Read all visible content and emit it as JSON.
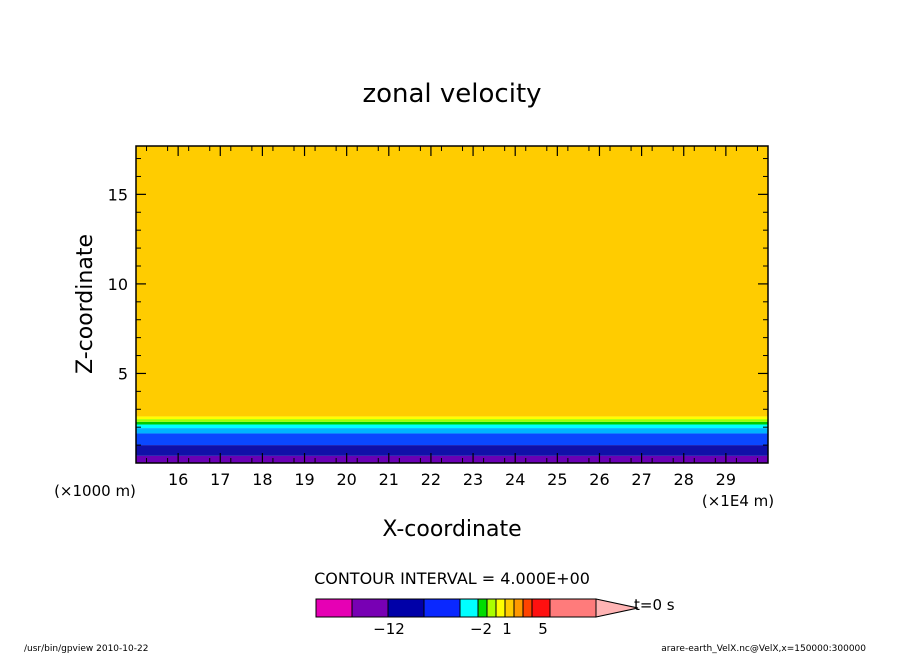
{
  "chart_data": {
    "type": "heatmap",
    "title": "zonal velocity",
    "xlabel": "X-coordinate",
    "ylabel": "Z-coordinate",
    "x_unit_left": "(×1000 m)",
    "x_unit_right": "(×1E4 m)",
    "xlim": [
      15.0,
      30.0
    ],
    "ylim": [
      0.0,
      17.7
    ],
    "x_ticks": [
      16,
      17,
      18,
      19,
      20,
      21,
      22,
      23,
      24,
      25,
      26,
      27,
      28,
      29
    ],
    "y_ticks": [
      5,
      10,
      15
    ],
    "layers": [
      {
        "z0": 0.0,
        "z1": 0.4,
        "color": "#6a00b4"
      },
      {
        "z0": 0.4,
        "z1": 1.0,
        "color": "#1010a8"
      },
      {
        "z0": 1.0,
        "z1": 1.65,
        "color": "#0a48ff"
      },
      {
        "z0": 1.65,
        "z1": 1.95,
        "color": "#00b4ff"
      },
      {
        "z0": 1.95,
        "z1": 2.15,
        "color": "#00ffff"
      },
      {
        "z0": 2.15,
        "z1": 2.3,
        "color": "#00cc00"
      },
      {
        "z0": 2.3,
        "z1": 2.45,
        "color": "#a0ff00"
      },
      {
        "z0": 2.45,
        "z1": 2.6,
        "color": "#ffff00"
      },
      {
        "z0": 2.6,
        "z1": 17.7,
        "color": "#ffcc00"
      }
    ],
    "colorbar": {
      "contour_interval": "CONTOUR INTERVAL = 4.000E+00",
      "tick_labels": [
        "−12",
        "−2",
        "1",
        "5"
      ],
      "tick_positions": [
        -12,
        -2,
        1,
        5
      ],
      "time_label": "t=0 s",
      "segments": [
        {
          "v0": -24,
          "v1": -20,
          "color": "#e600b4"
        },
        {
          "v0": -20,
          "v1": -16,
          "color": "#7800b4"
        },
        {
          "v0": -16,
          "v1": -12,
          "color": "#0000a8"
        },
        {
          "v0": -12,
          "v1": -8,
          "color": "#0a28ff"
        },
        {
          "v0": -8,
          "v1": -4,
          "color": "#0a28ff"
        },
        {
          "v0": -4,
          "v1": -2,
          "color": "#00ffff"
        },
        {
          "v0": -2,
          "v1": -1,
          "color": "#00dd00"
        },
        {
          "v0": -1,
          "v1": 0,
          "color": "#aaff00"
        },
        {
          "v0": 0,
          "v1": 1,
          "color": "#ffff00"
        },
        {
          "v0": 1,
          "v1": 2,
          "color": "#ffcc00"
        },
        {
          "v0": 2,
          "v1": 3,
          "color": "#ff9900"
        },
        {
          "v0": 3,
          "v1": 4,
          "color": "#ff4400"
        },
        {
          "v0": 4,
          "v1": 8,
          "color": "#ff1010"
        },
        {
          "v0": 8,
          "v1": 16,
          "color": "#ff7b7b"
        }
      ],
      "arrow_color": "#ffb4b4"
    }
  },
  "footer": {
    "left": "/usr/bin/gpview   2010-10-22",
    "right": "arare-earth_VelX.nc@VelX,x=150000:300000"
  }
}
